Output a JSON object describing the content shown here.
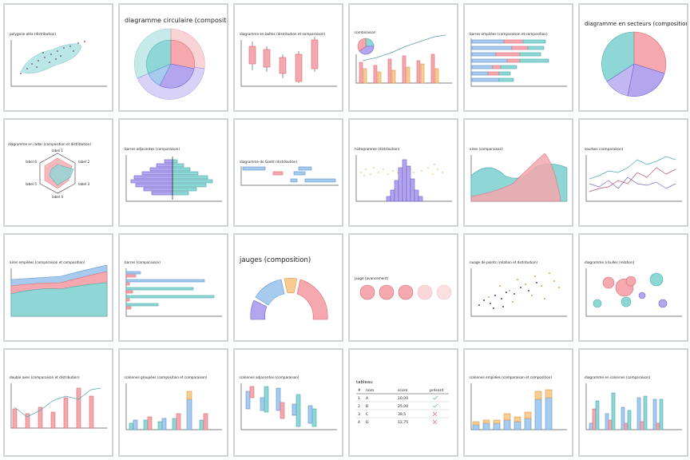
{
  "tiles": [
    {
      "title": "polygone aléa (distribution)"
    },
    {
      "title": "diagramme circulaire (composition)"
    },
    {
      "title": "diagramme en boîtes (distribution et comparaison)"
    },
    {
      "title": "combinaison"
    },
    {
      "title": "barres empilées (comparaison et composition)"
    },
    {
      "title": "diagramme en secteurs (composition)"
    },
    {
      "title": "diagramme en radar (composition et distribution)",
      "labels": [
        "label 1",
        "label 2",
        "label 3",
        "label 4",
        "label 5",
        "label 6"
      ]
    },
    {
      "title": "barres adjacentes (comparaison)"
    },
    {
      "title": "diagramme de Gantt (distribution)"
    },
    {
      "title": "histogramme (distribution)"
    },
    {
      "title": "aires (comparaison)"
    },
    {
      "title": "courbes (comparaison)"
    },
    {
      "title": "aires empilées (comparaison et composition)"
    },
    {
      "title": "barres (comparaison)"
    },
    {
      "title": "jauges (composition)"
    },
    {
      "title": "jauge (avancement)"
    },
    {
      "title": "nuage de points (relation et distribution)"
    },
    {
      "title": "diagramme à bulles (relation)"
    },
    {
      "title": "double axes (comparaison et distribution)"
    },
    {
      "title": "colonnes groupées (composition et comparaison)"
    },
    {
      "title": "colonnes adjacentes (comparaison)"
    },
    {
      "title": "tableau",
      "table": {
        "headers": [
          "#",
          "nom",
          "score",
          "présent"
        ],
        "rows": [
          [
            "1",
            "A",
            "10,00"
          ],
          [
            "2",
            "B",
            "25,00"
          ],
          [
            "3",
            "C",
            "39,5"
          ],
          [
            "4",
            "D",
            "12,75"
          ]
        ]
      }
    },
    {
      "title": "colonnes empilées (comparaison et composition)"
    },
    {
      "title": "diagramme en colonnes (comparaison)"
    }
  ]
}
